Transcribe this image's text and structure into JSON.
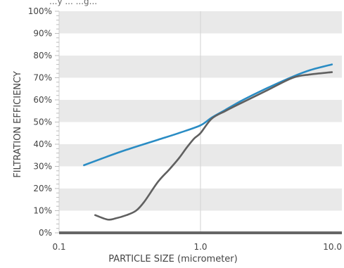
{
  "top_text": "...y ... ...g...",
  "chart_data": {
    "type": "line",
    "x_scale": "log",
    "xlim": [
      0.1,
      10
    ],
    "ylim": [
      0,
      100
    ],
    "xlabel": "PARTICLE SIZE (micrometer)",
    "ylabel": "FILTRATION EFFICIENCY",
    "x_ticks": [
      {
        "value": 0.1,
        "label": "0.1"
      },
      {
        "value": 1,
        "label": "1.0"
      },
      {
        "value": 10,
        "label": "10.0"
      }
    ],
    "y_ticks": [
      {
        "value": 0,
        "label": "0%"
      },
      {
        "value": 10,
        "label": "10%"
      },
      {
        "value": 20,
        "label": "20%"
      },
      {
        "value": 30,
        "label": "30%"
      },
      {
        "value": 40,
        "label": "40%"
      },
      {
        "value": 50,
        "label": "50%"
      },
      {
        "value": 60,
        "label": "60%"
      },
      {
        "value": 70,
        "label": "70%"
      },
      {
        "value": 80,
        "label": "80%"
      },
      {
        "value": 90,
        "label": "90%"
      },
      {
        "value": 100,
        "label": "100%"
      }
    ],
    "grid": "horizontal bands, vertical line at 1.0",
    "band_color": "#e9e9e9",
    "series": [
      {
        "color": "#2a8cc4",
        "points": [
          [
            0.15,
            30.5
          ],
          [
            0.2,
            33.5
          ],
          [
            0.3,
            37.5
          ],
          [
            0.5,
            42
          ],
          [
            0.7,
            45
          ],
          [
            1.0,
            48.5
          ],
          [
            1.2,
            52
          ],
          [
            1.5,
            55.5
          ],
          [
            2.0,
            60
          ],
          [
            3.0,
            65.5
          ],
          [
            4.5,
            70.5
          ],
          [
            6.0,
            73.5
          ],
          [
            8.5,
            76
          ]
        ]
      },
      {
        "color": "#606060",
        "points": [
          [
            0.18,
            8
          ],
          [
            0.22,
            6
          ],
          [
            0.25,
            6.5
          ],
          [
            0.3,
            8
          ],
          [
            0.35,
            10
          ],
          [
            0.4,
            14
          ],
          [
            0.5,
            23
          ],
          [
            0.6,
            28.5
          ],
          [
            0.7,
            33.5
          ],
          [
            0.8,
            38.5
          ],
          [
            0.9,
            42.5
          ],
          [
            1.0,
            45
          ],
          [
            1.2,
            51.5
          ],
          [
            1.5,
            55
          ],
          [
            2.0,
            59
          ],
          [
            3.0,
            64.5
          ],
          [
            4.5,
            70
          ],
          [
            6.0,
            71.5
          ],
          [
            8.5,
            72.5
          ]
        ]
      }
    ]
  }
}
